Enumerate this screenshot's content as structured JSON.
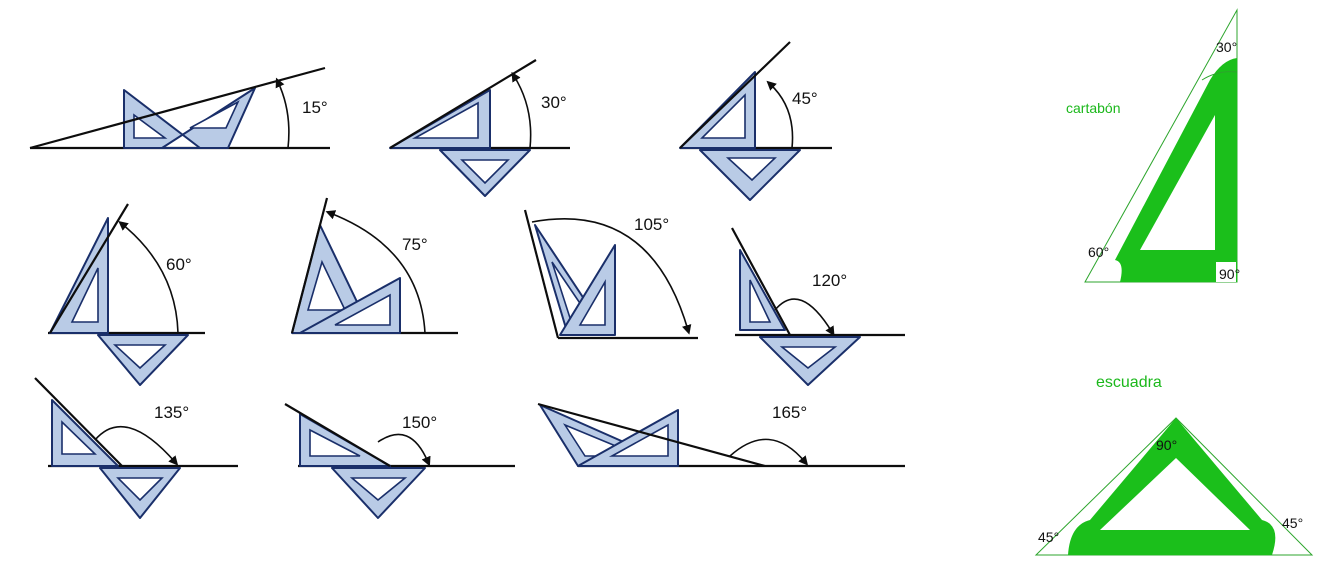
{
  "angles": {
    "a15": "15°",
    "a30": "30°",
    "a45": "45°",
    "a60": "60°",
    "a75": "75°",
    "a105": "105°",
    "a120": "120°",
    "a135": "135°",
    "a150": "150°",
    "a165": "165°"
  },
  "cartabon": {
    "title": "cartabón",
    "top_angle": "30°",
    "left_angle": "60°",
    "right_angle": "90°"
  },
  "escuadra": {
    "title": "escuadra",
    "top_angle": "90°",
    "left_angle": "45°",
    "right_angle": "45°"
  },
  "colors": {
    "tool_fill": "#b9cbe6",
    "tool_stroke": "#1a2f6a",
    "green": "#1bbf1b"
  }
}
